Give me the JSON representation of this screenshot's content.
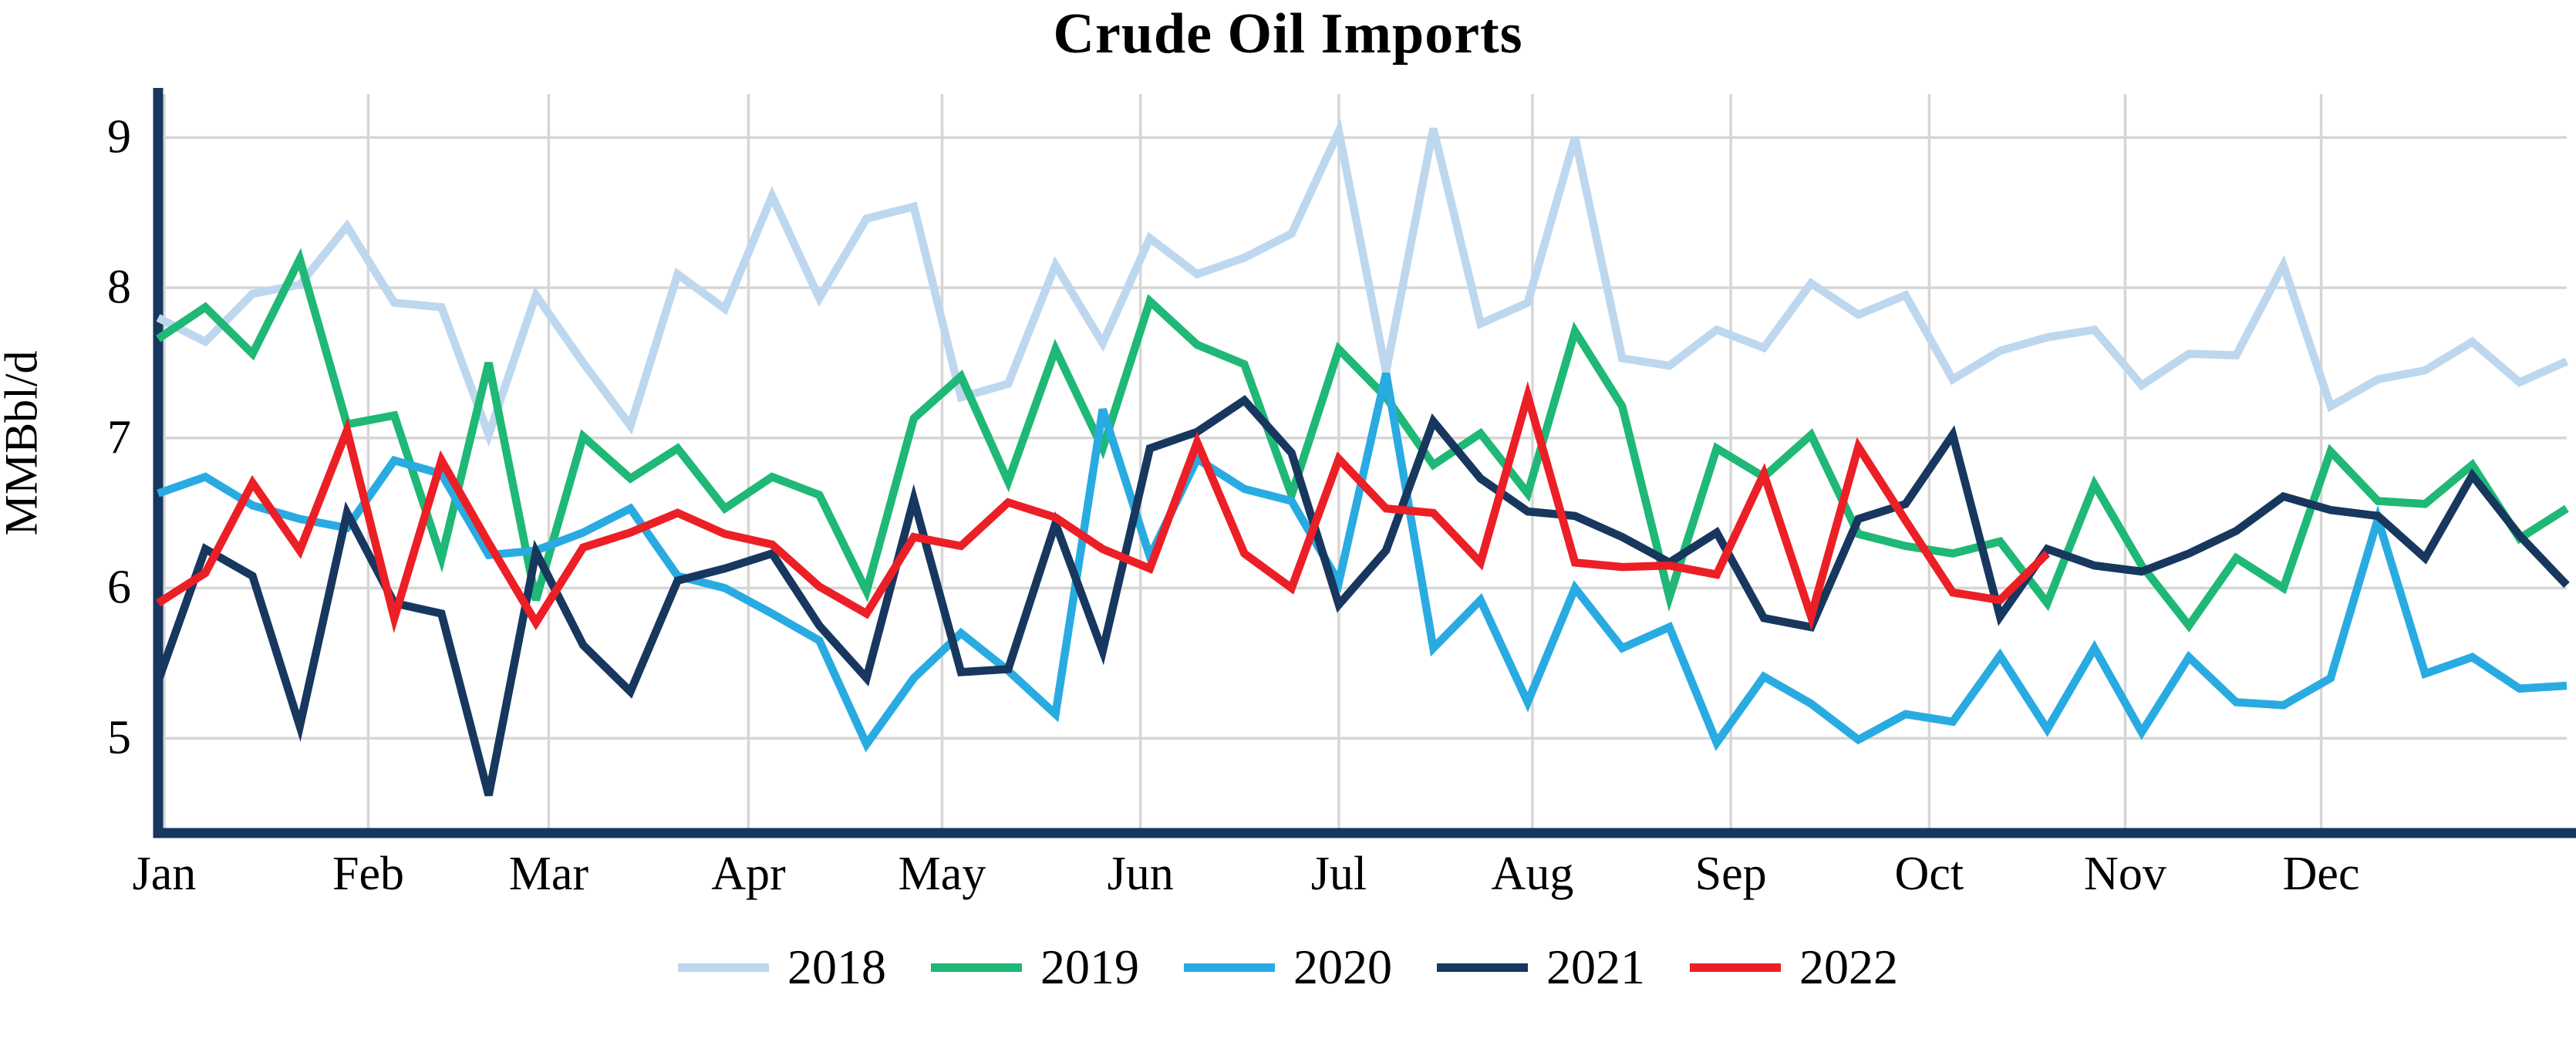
{
  "chart_data": {
    "type": "line",
    "title": "Crude Oil Imports",
    "ylabel": "MMBbl/d",
    "xlabel": "",
    "grid": true,
    "legend_position": "bottom",
    "x_unit": "week (52 weekly points per year)",
    "ylim": [
      4.37,
      9.28
    ],
    "yticks": [
      5,
      6,
      7,
      8,
      9
    ],
    "months": [
      "Jan",
      "Feb",
      "Mar",
      "Apr",
      "May",
      "Jun",
      "Jul",
      "Aug",
      "Sep",
      "Oct",
      "Nov",
      "Dec"
    ],
    "month_week_positions": [
      0.13,
      4.45,
      8.27,
      12.5,
      16.6,
      20.8,
      25.0,
      29.1,
      33.3,
      37.5,
      41.65,
      45.8
    ],
    "axis_color": "#17375E",
    "grid_color": "#D6D6D6",
    "series": [
      {
        "name": "2018",
        "color": "#BDD7EE",
        "values": [
          7.8,
          7.64,
          7.96,
          8.02,
          8.41,
          7.9,
          7.87,
          7.02,
          7.95,
          7.5,
          7.08,
          8.09,
          7.86,
          8.61,
          7.93,
          8.46,
          8.54,
          7.27,
          7.36,
          8.15,
          7.63,
          8.33,
          8.09,
          8.2,
          8.36,
          9.04,
          7.44,
          9.06,
          7.76,
          7.9,
          9.0,
          7.53,
          7.48,
          7.72,
          7.6,
          8.03,
          7.82,
          7.95,
          7.39,
          7.58,
          7.67,
          7.72,
          7.35,
          7.56,
          7.55,
          8.15,
          7.21,
          7.39,
          7.45,
          7.64,
          7.37,
          7.51
        ]
      },
      {
        "name": "2019",
        "color": "#1FB876",
        "values": [
          7.66,
          7.87,
          7.56,
          8.19,
          7.09,
          7.15,
          6.2,
          7.5,
          5.92,
          7.01,
          6.73,
          6.93,
          6.53,
          6.74,
          6.62,
          5.98,
          7.13,
          7.41,
          6.71,
          7.59,
          6.93,
          7.91,
          7.62,
          7.49,
          6.62,
          7.59,
          7.27,
          6.82,
          7.03,
          6.63,
          7.71,
          7.21,
          5.94,
          6.93,
          6.74,
          7.02,
          6.36,
          6.28,
          6.23,
          6.31,
          5.9,
          6.69,
          6.15,
          5.75,
          6.2,
          6.0,
          6.91,
          6.58,
          6.56,
          6.82,
          6.33,
          6.53
        ]
      },
      {
        "name": "2020",
        "color": "#29ABE2",
        "values": [
          6.63,
          6.74,
          6.55,
          6.46,
          6.4,
          6.85,
          6.76,
          6.22,
          6.25,
          6.37,
          6.53,
          6.08,
          6.0,
          5.83,
          5.65,
          4.96,
          5.4,
          5.7,
          5.45,
          5.16,
          7.19,
          6.21,
          6.86,
          6.66,
          6.58,
          6.04,
          7.43,
          5.6,
          5.92,
          5.24,
          6.0,
          5.6,
          5.74,
          4.97,
          5.41,
          5.23,
          4.99,
          5.16,
          5.11,
          5.55,
          5.06,
          5.6,
          5.04,
          5.54,
          5.24,
          5.22,
          5.4,
          6.46,
          5.43,
          5.54,
          5.33,
          5.35
        ]
      },
      {
        "name": "2021",
        "color": "#17375E",
        "values": [
          5.38,
          6.26,
          6.08,
          5.08,
          6.5,
          5.9,
          5.83,
          4.62,
          6.24,
          5.62,
          5.31,
          6.05,
          6.13,
          6.23,
          5.75,
          5.4,
          6.59,
          5.44,
          5.46,
          6.43,
          5.58,
          6.93,
          7.04,
          7.25,
          6.9,
          5.89,
          6.25,
          7.11,
          6.73,
          6.51,
          6.48,
          6.34,
          6.17,
          6.37,
          5.8,
          5.74,
          6.46,
          6.56,
          7.02,
          5.81,
          6.26,
          6.15,
          6.11,
          6.23,
          6.38,
          6.61,
          6.52,
          6.48,
          6.2,
          6.75,
          6.35,
          6.02
        ]
      },
      {
        "name": "2022",
        "color": "#EC1F26",
        "values": [
          5.9,
          6.1,
          6.7,
          6.25,
          7.05,
          5.8,
          6.85,
          6.3,
          5.77,
          6.27,
          6.37,
          6.5,
          6.36,
          6.29,
          6.01,
          5.83,
          6.34,
          6.28,
          6.57,
          6.47,
          6.26,
          6.13,
          6.97,
          6.23,
          6.0,
          6.86,
          6.53,
          6.5,
          6.17,
          7.28,
          6.17,
          6.14,
          6.15,
          6.09,
          6.76,
          5.81,
          6.94,
          6.45,
          5.97,
          5.92,
          6.23
        ]
      }
    ]
  }
}
